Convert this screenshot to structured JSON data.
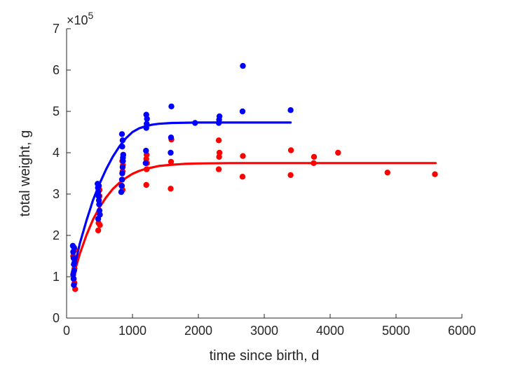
{
  "chart_data": {
    "type": "scatter",
    "xlabel": "time since birth, d",
    "ylabel": "total weight, g",
    "y_scale_exponent": {
      "base": "10",
      "exp": "5"
    },
    "xlim": [
      0,
      6000
    ],
    "ylim": [
      0,
      7
    ],
    "x_ticks": [
      0,
      1000,
      2000,
      3000,
      4000,
      5000,
      6000
    ],
    "y_ticks": [
      0,
      1,
      2,
      3,
      4,
      5,
      6,
      7
    ],
    "grid": false,
    "legend": "none",
    "series": [
      {
        "color": "#ff0000",
        "points": [
          [
            100,
            1.5
          ],
          [
            105,
            1.1
          ],
          [
            110,
            0.95
          ],
          [
            115,
            1.3
          ],
          [
            120,
            0.85
          ],
          [
            125,
            1.65
          ],
          [
            130,
            0.7
          ],
          [
            120,
            1.2
          ],
          [
            480,
            2.12
          ],
          [
            485,
            2.3
          ],
          [
            490,
            2.55
          ],
          [
            495,
            2.75
          ],
          [
            500,
            2.95
          ],
          [
            505,
            2.25
          ],
          [
            500,
            3.1
          ],
          [
            840,
            3.2
          ],
          [
            845,
            3.35
          ],
          [
            850,
            3.55
          ],
          [
            855,
            3.7
          ],
          [
            860,
            3.95
          ],
          [
            850,
            3.1
          ],
          [
            845,
            3.8
          ],
          [
            1210,
            3.22
          ],
          [
            1215,
            3.6
          ],
          [
            1220,
            3.75
          ],
          [
            1215,
            3.95
          ],
          [
            1210,
            3.85
          ],
          [
            1580,
            3.13
          ],
          [
            1585,
            3.78
          ],
          [
            1590,
            4.32
          ],
          [
            2310,
            3.6
          ],
          [
            2315,
            3.9
          ],
          [
            2320,
            4.0
          ],
          [
            2310,
            4.3
          ],
          [
            2670,
            3.42
          ],
          [
            2675,
            3.92
          ],
          [
            3400,
            3.46
          ],
          [
            3405,
            4.06
          ],
          [
            3750,
            3.75
          ],
          [
            3755,
            3.9
          ],
          [
            4120,
            4.0
          ],
          [
            4870,
            3.52
          ],
          [
            5590,
            3.48
          ]
        ],
        "fit": [
          [
            100,
            1.0
          ],
          [
            200,
            1.55
          ],
          [
            300,
            2.0
          ],
          [
            400,
            2.38
          ],
          [
            500,
            2.68
          ],
          [
            600,
            2.92
          ],
          [
            700,
            3.12
          ],
          [
            800,
            3.27
          ],
          [
            900,
            3.39
          ],
          [
            1000,
            3.49
          ],
          [
            1100,
            3.56
          ],
          [
            1200,
            3.61
          ],
          [
            1400,
            3.68
          ],
          [
            1600,
            3.71
          ],
          [
            1800,
            3.73
          ],
          [
            2000,
            3.74
          ],
          [
            2500,
            3.75
          ],
          [
            3000,
            3.75
          ],
          [
            4000,
            3.75
          ],
          [
            5000,
            3.75
          ],
          [
            5600,
            3.75
          ]
        ]
      },
      {
        "color": "#0000ff",
        "points": [
          [
            95,
            1.75
          ],
          [
            100,
            1.6
          ],
          [
            105,
            1.45
          ],
          [
            110,
            1.3
          ],
          [
            115,
            1.15
          ],
          [
            100,
            1.05
          ],
          [
            105,
            0.95
          ],
          [
            110,
            0.8
          ],
          [
            115,
            1.7
          ],
          [
            120,
            1.35
          ],
          [
            470,
            3.25
          ],
          [
            475,
            3.15
          ],
          [
            480,
            3.05
          ],
          [
            485,
            2.95
          ],
          [
            490,
            2.85
          ],
          [
            495,
            2.75
          ],
          [
            500,
            2.6
          ],
          [
            505,
            2.5
          ],
          [
            480,
            2.4
          ],
          [
            490,
            3.2
          ],
          [
            830,
            3.05
          ],
          [
            835,
            3.2
          ],
          [
            840,
            3.35
          ],
          [
            845,
            3.5
          ],
          [
            850,
            3.65
          ],
          [
            855,
            3.8
          ],
          [
            860,
            3.95
          ],
          [
            845,
            4.15
          ],
          [
            850,
            4.3
          ],
          [
            840,
            4.45
          ],
          [
            855,
            3.88
          ],
          [
            1200,
            3.75
          ],
          [
            1205,
            4.05
          ],
          [
            1210,
            4.6
          ],
          [
            1215,
            4.7
          ],
          [
            1220,
            4.82
          ],
          [
            1210,
            4.92
          ],
          [
            1580,
            4.0
          ],
          [
            1585,
            4.37
          ],
          [
            1590,
            5.12
          ],
          [
            1950,
            4.72
          ],
          [
            2310,
            4.72
          ],
          [
            2315,
            4.8
          ],
          [
            2320,
            4.88
          ],
          [
            2670,
            5.0
          ],
          [
            2675,
            6.1
          ],
          [
            3400,
            5.03
          ]
        ],
        "fit": [
          [
            100,
            1.1
          ],
          [
            200,
            1.8
          ],
          [
            300,
            2.35
          ],
          [
            400,
            2.85
          ],
          [
            500,
            3.25
          ],
          [
            600,
            3.6
          ],
          [
            700,
            3.9
          ],
          [
            800,
            4.15
          ],
          [
            900,
            4.35
          ],
          [
            1000,
            4.5
          ],
          [
            1100,
            4.59
          ],
          [
            1200,
            4.64
          ],
          [
            1300,
            4.68
          ],
          [
            1400,
            4.7
          ],
          [
            1600,
            4.72
          ],
          [
            2000,
            4.73
          ],
          [
            2500,
            4.73
          ],
          [
            3000,
            4.73
          ],
          [
            3400,
            4.73
          ]
        ]
      }
    ]
  }
}
